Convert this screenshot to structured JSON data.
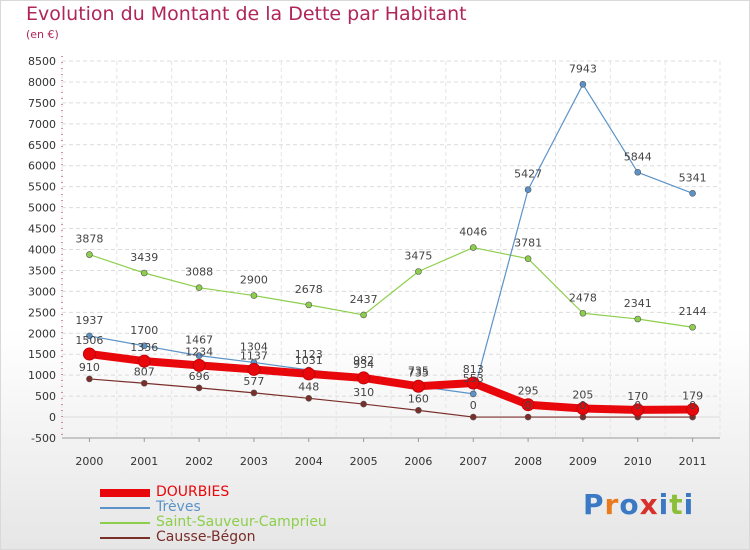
{
  "header": {
    "title": "Evolution du Montant de la Dette par Habitant",
    "subtitle": "(en €)"
  },
  "logo": {
    "text": "Proxiti",
    "letters": [
      "P",
      "r",
      "o",
      "x",
      "i",
      "t",
      "i"
    ],
    "colors": [
      "#3c79c4",
      "#e87b1e",
      "#3c79c4",
      "#d6312b",
      "#3c79c4",
      "#8bbf3a",
      "#3c79c4"
    ]
  },
  "chart_data": {
    "type": "line",
    "title": "Evolution du Montant de la Dette par Habitant",
    "ylabel": "(en €)",
    "x": [
      "2000",
      "2001",
      "2002",
      "2003",
      "2004",
      "2005",
      "2006",
      "2007",
      "2008",
      "2009",
      "2010",
      "2011"
    ],
    "ylim": [
      -500,
      8500
    ],
    "yticks": [
      -500,
      0,
      500,
      1000,
      1500,
      2000,
      2500,
      3000,
      3500,
      4000,
      4500,
      5000,
      5500,
      6000,
      6500,
      7000,
      7500,
      8000,
      8500
    ],
    "ytick_labels": [
      "-500",
      "0",
      "500",
      "1000",
      "1500",
      "2000",
      "2500",
      "3000",
      "3500",
      "4000",
      "4500",
      "5000",
      "5500",
      "6000",
      "6500",
      "7000",
      "7500",
      "8000",
      "8500"
    ],
    "grid": true,
    "legend_position": "bottom-left",
    "series": [
      {
        "name": "DOURBIES",
        "color": "#e8070b",
        "values": [
          1506,
          1336,
          1234,
          1137,
          1031,
          934,
          735,
          813,
          295,
          205,
          170,
          179
        ],
        "labels": [
          "1506",
          "1336",
          "1234",
          "1137",
          "1031",
          "934",
          "735",
          "813",
          "295",
          "205",
          "170",
          "179"
        ]
      },
      {
        "name": "Trèves",
        "color": "#5b93c8",
        "values": [
          1937,
          1700,
          1467,
          1304,
          1123,
          982,
          735,
          553,
          5427,
          7943,
          5844,
          5341
        ],
        "labels": [
          "1937",
          "1700",
          "1467",
          "1304",
          "1123",
          "982",
          "735",
          "553",
          "5427",
          "7943",
          "5844",
          "5341"
        ]
      },
      {
        "name": "Saint-Sauveur-Camprieu",
        "color": "#8dcf4c",
        "values": [
          3878,
          3439,
          3088,
          2900,
          2678,
          2437,
          3475,
          4046,
          3781,
          2478,
          2341,
          2144
        ],
        "labels": [
          "3878",
          "3439",
          "3088",
          "2900",
          "2678",
          "2437",
          "3475",
          "4046",
          "3781",
          "2478",
          "2341",
          "2144"
        ]
      },
      {
        "name": "Causse-Bégon",
        "color": "#7a2e2a",
        "values": [
          910,
          807,
          696,
          577,
          448,
          310,
          160,
          0,
          0,
          0,
          0,
          0
        ],
        "labels": [
          "910",
          "807",
          "696",
          "577",
          "448",
          "310",
          "160",
          "0",
          "0",
          "0",
          "0",
          "0"
        ]
      }
    ]
  }
}
